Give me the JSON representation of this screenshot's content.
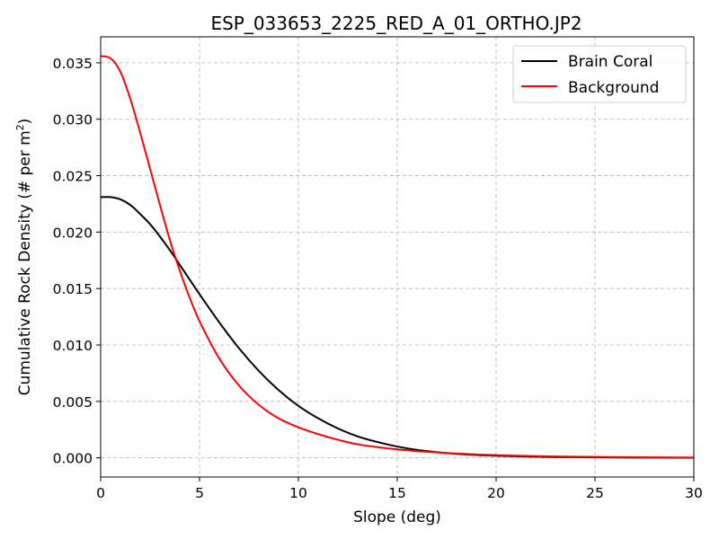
{
  "chart_data": {
    "type": "line",
    "title": "ESP_033653_2225_RED_A_01_ORTHO.JP2",
    "xlabel": "Slope (deg)",
    "ylabel_main": "Cumulative Rock Density (# per m",
    "ylabel_sup": "2",
    "ylabel_end": ")",
    "xlim": [
      0,
      30
    ],
    "ylim": [
      -0.0017,
      0.0373
    ],
    "x_ticks": [
      0,
      5,
      10,
      15,
      20,
      25,
      30
    ],
    "y_ticks": [
      0.0,
      0.005,
      0.01,
      0.015,
      0.02,
      0.025,
      0.03,
      0.035
    ],
    "x_tick_labels": [
      "0",
      "5",
      "10",
      "15",
      "20",
      "25",
      "30"
    ],
    "y_tick_labels": [
      "0.000",
      "0.005",
      "0.010",
      "0.015",
      "0.020",
      "0.025",
      "0.030",
      "0.035"
    ],
    "grid": true,
    "legend_position": "top-right",
    "x": [
      0,
      0.5,
      1,
      1.5,
      2,
      2.5,
      3,
      3.5,
      4,
      4.5,
      5,
      6,
      7,
      8,
      9,
      10,
      11,
      12,
      13,
      14,
      15,
      16,
      17,
      18,
      19,
      20,
      22,
      24,
      26,
      28,
      30
    ],
    "series": [
      {
        "name": "Brain Coral",
        "color": "#000000",
        "values": [
          0.0231,
          0.0231,
          0.0229,
          0.0224,
          0.0216,
          0.0207,
          0.0196,
          0.0184,
          0.0171,
          0.0158,
          0.0145,
          0.012,
          0.0097,
          0.0077,
          0.006,
          0.0046,
          0.0035,
          0.0026,
          0.0019,
          0.0014,
          0.001,
          0.0007,
          0.0005,
          0.00035,
          0.00025,
          0.00018,
          0.0001,
          6e-05,
          3e-05,
          2e-05,
          1e-05
        ]
      },
      {
        "name": "Background",
        "color": "#ff0000",
        "values": [
          0.0356,
          0.0354,
          0.0342,
          0.0318,
          0.0288,
          0.0256,
          0.0224,
          0.0193,
          0.0166,
          0.0142,
          0.0121,
          0.0088,
          0.0064,
          0.0047,
          0.0035,
          0.0027,
          0.0021,
          0.0016,
          0.0012,
          0.00095,
          0.00075,
          0.0006,
          0.00048,
          0.00038,
          0.0003,
          0.00024,
          0.00015,
          0.0001,
          6e-05,
          4e-05,
          3e-05
        ]
      }
    ]
  }
}
